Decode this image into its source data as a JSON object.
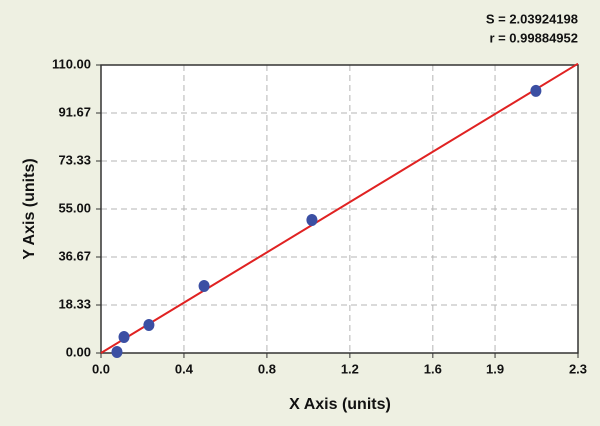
{
  "chart_data": {
    "type": "scatter",
    "annotations": [
      "S = 2.03924198",
      "r = 0.99884952"
    ],
    "xlabel": "X Axis (units)",
    "ylabel": "Y Axis (units)",
    "xlim": [
      0,
      2.3
    ],
    "ylim": [
      0,
      110
    ],
    "xticks": [
      {
        "value": 0,
        "label": "0.0"
      },
      0.4,
      0.8,
      1.2,
      1.6,
      1.9,
      2.3
    ],
    "yticks": [
      {
        "value": 0,
        "label": "0.00"
      },
      18.33,
      36.67,
      {
        "value": 55,
        "label": "55.00"
      },
      73.33,
      91.67,
      {
        "value": 110,
        "label": "110.00"
      }
    ],
    "grid": true,
    "series": [
      {
        "color": "#3b4fa3",
        "x": [
          0.077,
          0.111,
          0.231,
          0.497,
          1.017,
          2.097
        ],
        "values": [
          0.4,
          6.1,
          10.7,
          25.6,
          50.8,
          100.1
        ]
      }
    ],
    "fit": {
      "color": "#e02222",
      "x": [
        0,
        2.3
      ],
      "values": [
        0,
        110.5
      ]
    }
  }
}
